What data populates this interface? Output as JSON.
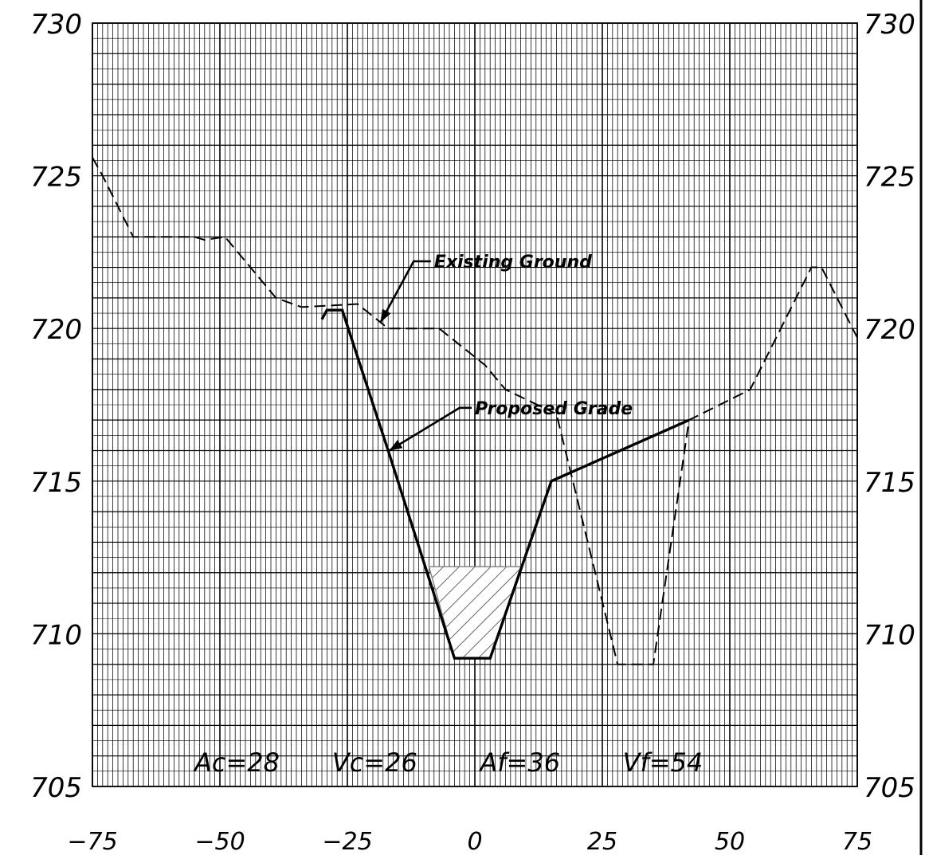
{
  "chart_data": {
    "type": "line",
    "xlim": [
      -75,
      75
    ],
    "ylim": [
      705,
      730
    ],
    "x_ticks": [
      "−75",
      "−50",
      "−25",
      "0",
      "25",
      "50",
      "75"
    ],
    "y_ticks_left": [
      "730",
      "725",
      "720",
      "715",
      "710",
      "705"
    ],
    "y_ticks_right": [
      "730",
      "725",
      "720",
      "715",
      "710",
      "705"
    ],
    "grid": true,
    "series": [
      {
        "name": "Existing Ground",
        "style": "dashed",
        "points": [
          [
            -75,
            725.6
          ],
          [
            -73,
            725.0
          ],
          [
            -67,
            723.0
          ],
          [
            -55,
            723.0
          ],
          [
            -53,
            722.9
          ],
          [
            -49,
            723.0
          ],
          [
            -39,
            721.0
          ],
          [
            -34,
            720.7
          ],
          [
            -23,
            720.8
          ],
          [
            -17,
            720.0
          ],
          [
            -7,
            720.0
          ],
          [
            2,
            718.8
          ],
          [
            6,
            718.0
          ],
          [
            16,
            717.2
          ],
          [
            28,
            709.0
          ],
          [
            35,
            709.0
          ],
          [
            42,
            717.0
          ],
          [
            54,
            718.0
          ],
          [
            66,
            722.0
          ],
          [
            68,
            722.0
          ],
          [
            75,
            719.7
          ]
        ]
      },
      {
        "name": "Proposed Grade",
        "style": "solid",
        "points": [
          [
            -30,
            720.3
          ],
          [
            -29,
            720.6
          ],
          [
            -26,
            720.6
          ],
          [
            -17,
            716.0
          ],
          [
            -4,
            709.2
          ],
          [
            3,
            709.2
          ],
          [
            15,
            715.0
          ],
          [
            42,
            717.0
          ]
        ]
      }
    ],
    "hatched_region": {
      "points": [
        [
          -9,
          712.2
        ],
        [
          9,
          712.2
        ],
        [
          3,
          709.2
        ],
        [
          -4,
          709.2
        ]
      ]
    },
    "annotations": [
      {
        "text": "Existing Ground",
        "target": [
          -18.5,
          720.2
        ],
        "elbow": [
          -12,
          722.2
        ],
        "label_at": [
          -8,
          722.2
        ]
      },
      {
        "text": "Proposed Grade",
        "target": [
          -16.8,
          716.0
        ],
        "elbow": [
          -3,
          717.4
        ],
        "label_at": [
          0,
          717.4
        ]
      }
    ],
    "stats": [
      {
        "text": "Ac=28",
        "x": -55
      },
      {
        "text": "Vc=26",
        "x": -28
      },
      {
        "text": "Af=36",
        "x": 1
      },
      {
        "text": "Vf=54",
        "x": 29
      }
    ]
  }
}
